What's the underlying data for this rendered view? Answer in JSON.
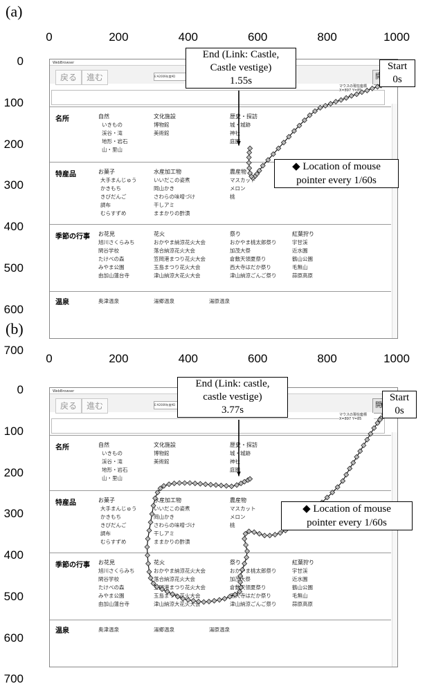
{
  "axes": {
    "x_ticks": [
      "0",
      "200",
      "400",
      "600",
      "800",
      "1000"
    ],
    "y_ticks": [
      "0",
      "100",
      "200",
      "300",
      "400",
      "500",
      "600",
      "700"
    ]
  },
  "browser": {
    "window_title": "WebBrowser",
    "back_label": "戻る",
    "forward_label": "進む",
    "address_value": "E:¥2009年度¥D",
    "go_label": "開始",
    "coords_label": "マウスの現在座標",
    "coords_value": "X=897 Y=85"
  },
  "sections": [
    {
      "title": "名所",
      "categories": [
        {
          "name": "自然",
          "items": [
            "いきもの",
            "渓谷・滝",
            "地形・岩石",
            "山・里山"
          ]
        },
        {
          "name": "文化施設",
          "items": [
            "博物館",
            "美術館"
          ]
        },
        {
          "name": "歴史・探訪",
          "items": [
            "城・城跡",
            "神社",
            "庭園"
          ]
        }
      ]
    },
    {
      "title": "特産品",
      "categories": [
        {
          "name": "お菓子",
          "items": [
            "大手まんじゅう",
            "かきもち",
            "きびだんご",
            "調布",
            "むらすずめ"
          ]
        },
        {
          "name": "水産加工物",
          "items": [
            "いいだこの姿煮",
            "岡山かき",
            "さわらの味噌づけ",
            "干しアミ",
            "ままかりの酢漬"
          ]
        },
        {
          "name": "農産物",
          "items": [
            "マスカット",
            "メロン",
            "桃"
          ]
        }
      ]
    },
    {
      "title": "季節の行事",
      "categories": [
        {
          "name": "お花見",
          "items": [
            "旭川さくらみち",
            "閑谷学校",
            "たけべの森",
            "みやま公園",
            "由加山蓮台寺"
          ]
        },
        {
          "name": "花火",
          "items": [
            "おかやま納涼花火大会",
            "落合納涼花火大会",
            "笠岡港まつり花火大会",
            "玉島まつり花火大会",
            "津山納涼大花火大会"
          ]
        },
        {
          "name": "祭り",
          "items": [
            "おかやま桃太郎祭り",
            "加茂大祭",
            "倉敷天領夏祭り",
            "西大寺はだか祭り",
            "津山納涼ごんご祭り"
          ]
        },
        {
          "name": "紅葉狩り",
          "items": [
            "宇甘渓",
            "近水園",
            "鶴山公園",
            "毛無山",
            "蒜原高原"
          ]
        }
      ]
    },
    {
      "title": "温泉",
      "categories": [
        {
          "name": "",
          "items": [
            "奥津温泉",
            "湯郷温泉",
            "湯原温泉"
          ]
        }
      ]
    }
  ],
  "panels": [
    {
      "label": "(a)",
      "end_label_lines": [
        "End (Link: Castle,",
        "Castle vestige)",
        "1.55s"
      ],
      "start_label_lines": [
        "Start",
        "0s"
      ],
      "legend_lines": [
        "◆ Location of mouse",
        "pointer every 1/60s"
      ]
    },
    {
      "label": "(b)",
      "end_label_lines": [
        "End (Link: castle,",
        "castle vestige)",
        "3.77s"
      ],
      "start_label_lines": [
        "Start",
        "0s"
      ],
      "legend_lines": [
        "◆ Location of mouse",
        "pointer every 1/60s"
      ]
    }
  ],
  "chart_data": [
    {
      "type": "scatter",
      "title": "",
      "xlim": [
        0,
        1000
      ],
      "ylim": [
        0,
        780
      ],
      "series": [
        {
          "x": [
            955,
            945,
            930,
            915,
            900,
            885,
            870,
            855,
            840,
            825,
            810,
            795,
            780,
            765,
            750,
            735,
            720,
            705,
            690,
            675,
            660,
            645,
            630,
            615,
            605,
            598,
            592,
            586,
            582,
            578,
            576,
            575,
            575,
            576,
            578
          ],
          "y": [
            58,
            61,
            65,
            70,
            74,
            79,
            83,
            88,
            93,
            97,
            102,
            107,
            112,
            120,
            130,
            142,
            155,
            168,
            182,
            196,
            210,
            224,
            238,
            252,
            264,
            272,
            278,
            282,
            278,
            270,
            258,
            245,
            232,
            220,
            210
          ]
        }
      ]
    },
    {
      "type": "scatter",
      "title": "",
      "xlim": [
        0,
        1000
      ],
      "ylim": [
        0,
        780
      ],
      "series": [
        {
          "x": [
            955,
            952,
            945,
            935,
            925,
            915,
            905,
            895,
            885,
            875,
            865,
            855,
            845,
            830,
            815,
            800,
            785,
            770,
            755,
            740,
            725,
            710,
            695,
            680,
            665,
            650,
            635,
            620,
            605,
            590,
            575,
            565,
            562,
            566,
            570,
            568,
            562,
            556,
            550,
            550,
            552,
            548,
            535,
            520,
            505,
            490,
            475,
            460,
            445,
            430,
            415,
            400,
            385,
            370,
            355,
            340,
            325,
            310,
            300,
            292,
            288,
            285,
            283,
            282,
            284,
            288,
            292,
            296,
            300,
            305,
            312,
            320,
            330,
            345,
            360,
            375,
            390,
            405,
            420,
            435,
            450,
            465,
            480,
            495,
            510,
            525,
            540,
            552,
            562,
            572,
            578
          ],
          "y": [
            68,
            72,
            80,
            92,
            106,
            120,
            134,
            148,
            162,
            176,
            190,
            205,
            220,
            235,
            248,
            260,
            272,
            284,
            296,
            306,
            315,
            324,
            332,
            340,
            346,
            350,
            352,
            352,
            348,
            344,
            342,
            348,
            360,
            375,
            390,
            405,
            420,
            435,
            450,
            465,
            478,
            488,
            495,
            500,
            505,
            508,
            510,
            512,
            513,
            512,
            510,
            508,
            505,
            500,
            494,
            488,
            482,
            476,
            468,
            455,
            440,
            420,
            400,
            380,
            360,
            340,
            320,
            300,
            280,
            262,
            248,
            238,
            232,
            228,
            226,
            225,
            225,
            225,
            226,
            227,
            228,
            229,
            230,
            231,
            232,
            233,
            230,
            226,
            222,
            218,
            215
          ]
        }
      ]
    }
  ]
}
